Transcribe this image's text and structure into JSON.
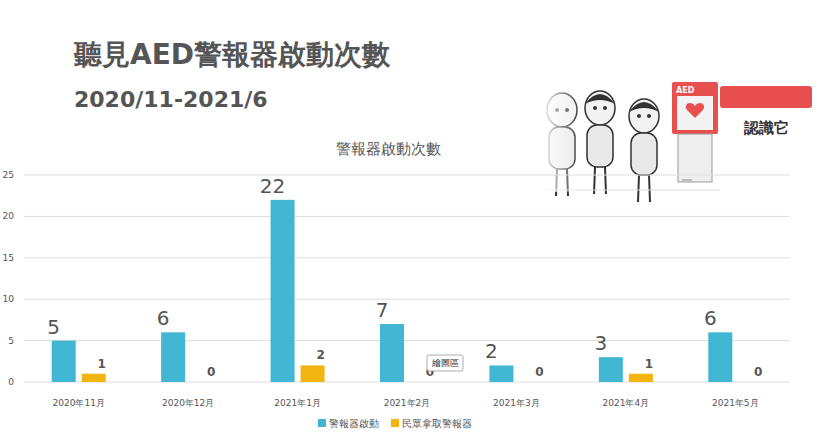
{
  "header": {
    "title": "聽見AED警報器啟動次數",
    "subtitle": "2020/11-2021/6"
  },
  "chart_data": {
    "type": "bar",
    "title": "警報器啟動次數",
    "categories": [
      "2020年11月",
      "2020年12月",
      "2021年1月",
      "2021年2月",
      "2021年3月",
      "2021年4月",
      "2021年5月"
    ],
    "series": [
      {
        "name": "警報器啟動",
        "color": "#42b7d4",
        "values": [
          5,
          6,
          22,
          7,
          2,
          3,
          6
        ]
      },
      {
        "name": "民眾拿取警報器",
        "color": "#f2b50f",
        "values": [
          1,
          0,
          2,
          0,
          0,
          1,
          0
        ]
      }
    ],
    "ylim": [
      0,
      25
    ],
    "yticks": [
      0,
      5,
      10,
      15,
      20,
      25
    ],
    "grid": true,
    "legend": "bottom",
    "data_labels": true,
    "annotations": [
      "繪圖區",
      "AED",
      "認識它"
    ]
  }
}
